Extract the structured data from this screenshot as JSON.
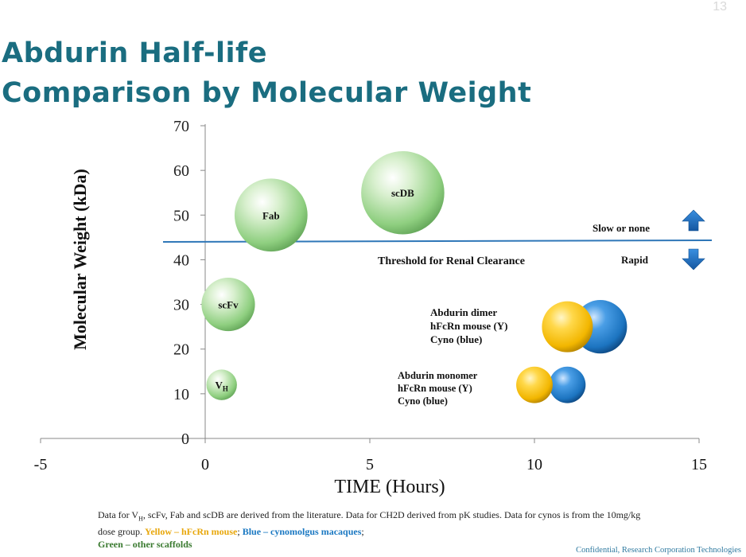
{
  "slide": {
    "number": "13",
    "title_line1": "Abdurin Half-life",
    "title_line2": "Comparison by Molecular Weight",
    "footnote": {
      "part1": "Data  for V",
      "vh_sub": "H",
      "part2": ", scFv, Fab and scDB are derived from the literature. Data  for CH2D derived from pK studies. Data for cynos is  from the 10mg/kg  dose group. ",
      "yellow": "Yellow – hFcRn mouse",
      "sep1": "; ",
      "blue": "Blue – cynomolgus macaques",
      "sep2": "; ",
      "green": "Green – other scaffolds"
    },
    "confidential": "Confidential, Research Corporation Technologies"
  },
  "chart_data": {
    "type": "scatter",
    "title": "",
    "xlabel": "TIME (Hours)",
    "ylabel": "Molecular Weight (kDa)",
    "xlim": [
      -5,
      15
    ],
    "ylim": [
      0,
      70
    ],
    "x_ticks": [
      -5,
      0,
      5,
      10,
      15
    ],
    "y_ticks": [
      0,
      10,
      20,
      30,
      40,
      50,
      60,
      70
    ],
    "grid": false,
    "colors": {
      "green": "#8fcf80",
      "yellow": "#f2b600",
      "blue": "#1c74c0",
      "threshold_line": "#2f77b8",
      "arrow": "#1f6fc0"
    },
    "series": [
      {
        "name": "Green – other scaffolds",
        "color": "green",
        "points": [
          {
            "label": "V",
            "label_sub": "H",
            "x": 0.5,
            "y": 12,
            "r": 3.6
          },
          {
            "label": "scFv",
            "x": 0.7,
            "y": 30,
            "r": 6.3
          },
          {
            "label": "Fab",
            "x": 2,
            "y": 50,
            "r": 8.6
          },
          {
            "label": "scDB",
            "x": 6,
            "y": 55,
            "r": 9.8
          }
        ]
      },
      {
        "name": "Yellow – hFcRn mouse",
        "color": "yellow",
        "points": [
          {
            "label": "",
            "x": 10,
            "y": 12,
            "r": 4.3
          },
          {
            "label": "",
            "x": 11,
            "y": 25,
            "r": 6.0
          }
        ]
      },
      {
        "name": "Blue – cynomolgus macaques",
        "color": "blue",
        "points": [
          {
            "label": "",
            "x": 11,
            "y": 12,
            "r": 4.3
          },
          {
            "label": "",
            "x": 12,
            "y": 25,
            "r": 6.3
          }
        ]
      }
    ],
    "threshold": {
      "y": 44,
      "label": "Threshold for Renal Clearance",
      "above_label": "Slow or none",
      "below_label": "Rapid"
    },
    "annotations": {
      "dimer": [
        "Abdurin dimer",
        "hFcRn mouse (Y)",
        "Cyno (blue)"
      ],
      "monomer": [
        "Abdurin monomer",
        "hFcRn mouse (Y)",
        "Cyno (blue)"
      ]
    }
  }
}
